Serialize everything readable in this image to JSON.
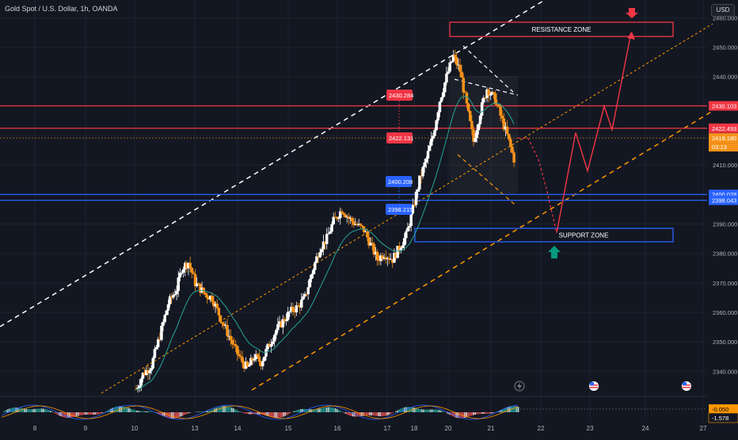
{
  "header": {
    "title": "Gold Spot / U.S. Dollar, 1h, OANDA"
  },
  "currency_button": {
    "label": "USD"
  },
  "zones": {
    "resistance": "RESISTANCE ZONE",
    "support": "SUPPORT ZONE"
  },
  "colors": {
    "background": "#131722",
    "up": "#ffffff",
    "down": "#f7931a",
    "red_line": "#f23645",
    "blue_line": "#2962ff",
    "ema": "#26a69a",
    "channel_white": "#ffffff",
    "channel_orange": "#ff9800",
    "arrow_red": "#f23645",
    "arrow_teal": "#089981"
  },
  "icons": [
    "lightning-icon",
    "us-flag-icon",
    "us-flag-icon"
  ],
  "chart_data": {
    "type": "candlestick",
    "symbol": "Gold Spot / U.S. Dollar",
    "interval": "1h",
    "exchange": "OANDA",
    "ylim": [
      2332,
      2462
    ],
    "y_ticks": [
      2340,
      2350,
      2360,
      2370,
      2380,
      2390,
      2400,
      2410,
      2420,
      2430,
      2440,
      2450,
      2460
    ],
    "y_tick_labels": [
      "2340.000",
      "2350.000",
      "2360.000",
      "2370.000",
      "2380.000",
      "2390.000",
      "2400.000",
      "2410.000",
      "2420.000",
      "2430.000",
      "2440.000",
      "2450.000",
      "2460.000"
    ],
    "x_ticks": [
      "8",
      "9",
      "10",
      "13",
      "14",
      "15",
      "16",
      "17",
      "18",
      "20",
      "21",
      "22",
      "23",
      "24",
      "27"
    ],
    "price_series": [
      [
        0,
        2334
      ],
      [
        4,
        2339
      ],
      [
        9,
        2342
      ],
      [
        14,
        2352
      ],
      [
        19,
        2363
      ],
      [
        24,
        2368
      ],
      [
        27,
        2375
      ],
      [
        31,
        2377
      ],
      [
        35,
        2370
      ],
      [
        41,
        2366
      ],
      [
        45,
        2365
      ],
      [
        50,
        2358
      ],
      [
        55,
        2352
      ],
      [
        59,
        2347
      ],
      [
        63,
        2343
      ],
      [
        66,
        2341
      ],
      [
        70,
        2345
      ],
      [
        74,
        2343
      ],
      [
        78,
        2348
      ],
      [
        83,
        2354
      ],
      [
        87,
        2357
      ],
      [
        91,
        2360
      ],
      [
        96,
        2362
      ],
      [
        100,
        2365
      ],
      [
        105,
        2375
      ],
      [
        109,
        2382
      ],
      [
        113,
        2385
      ],
      [
        117,
        2391
      ],
      [
        122,
        2395
      ],
      [
        126,
        2392
      ],
      [
        130,
        2390
      ],
      [
        135,
        2388
      ],
      [
        139,
        2383
      ],
      [
        143,
        2378
      ],
      [
        147,
        2380
      ],
      [
        152,
        2378
      ],
      [
        156,
        2382
      ],
      [
        160,
        2386
      ],
      [
        164,
        2395
      ],
      [
        168,
        2405
      ],
      [
        172,
        2412
      ],
      [
        176,
        2420
      ],
      [
        180,
        2432
      ],
      [
        184,
        2440
      ],
      [
        188,
        2447
      ],
      [
        192,
        2442
      ],
      [
        196,
        2430
      ],
      [
        200,
        2418
      ],
      [
        204,
        2428
      ],
      [
        208,
        2436
      ],
      [
        213,
        2432
      ],
      [
        217,
        2425
      ],
      [
        220,
        2420
      ],
      [
        224,
        2412
      ]
    ],
    "horizontal_levels": [
      {
        "value": 2430.103,
        "label": "2430.103",
        "color": "red"
      },
      {
        "value": 2422.493,
        "label": "2422.493",
        "color": "red"
      },
      {
        "value": 2400.028,
        "label": "2400.028",
        "color": "blue"
      },
      {
        "value": 2398.043,
        "label": "2398.043",
        "color": "blue"
      }
    ],
    "last_price": {
      "value": 2419.18,
      "label": "2419.180",
      "countdown": "03:13"
    },
    "measure_labels": [
      {
        "label": "2430.284",
        "value": 2430.284,
        "color": "red"
      },
      {
        "label": "2422.131",
        "value": 2422.131,
        "color": "red"
      },
      {
        "label": "2400.208",
        "value": 2400.208,
        "color": "blue"
      },
      {
        "label": "2398.215",
        "value": 2398.215,
        "color": "blue"
      }
    ],
    "zones": [
      {
        "name": "RESISTANCE ZONE",
        "y_range": [
          2455,
          2460
        ],
        "color": "red"
      },
      {
        "name": "SUPPORT ZONE",
        "y_range": [
          2384,
          2389
        ],
        "color": "blue"
      }
    ],
    "projection_path": [
      [
        2419,
        2419
      ],
      [
        2412,
        2412
      ],
      [
        2402,
        2402
      ],
      [
        2387,
        2387
      ],
      [
        2421,
        2421
      ],
      [
        2408,
        2408
      ],
      [
        2430,
        2430
      ],
      [
        2422,
        2422
      ],
      [
        2455,
        2455
      ]
    ],
    "macd_labels": [
      "-0.050",
      "-1.578"
    ]
  }
}
